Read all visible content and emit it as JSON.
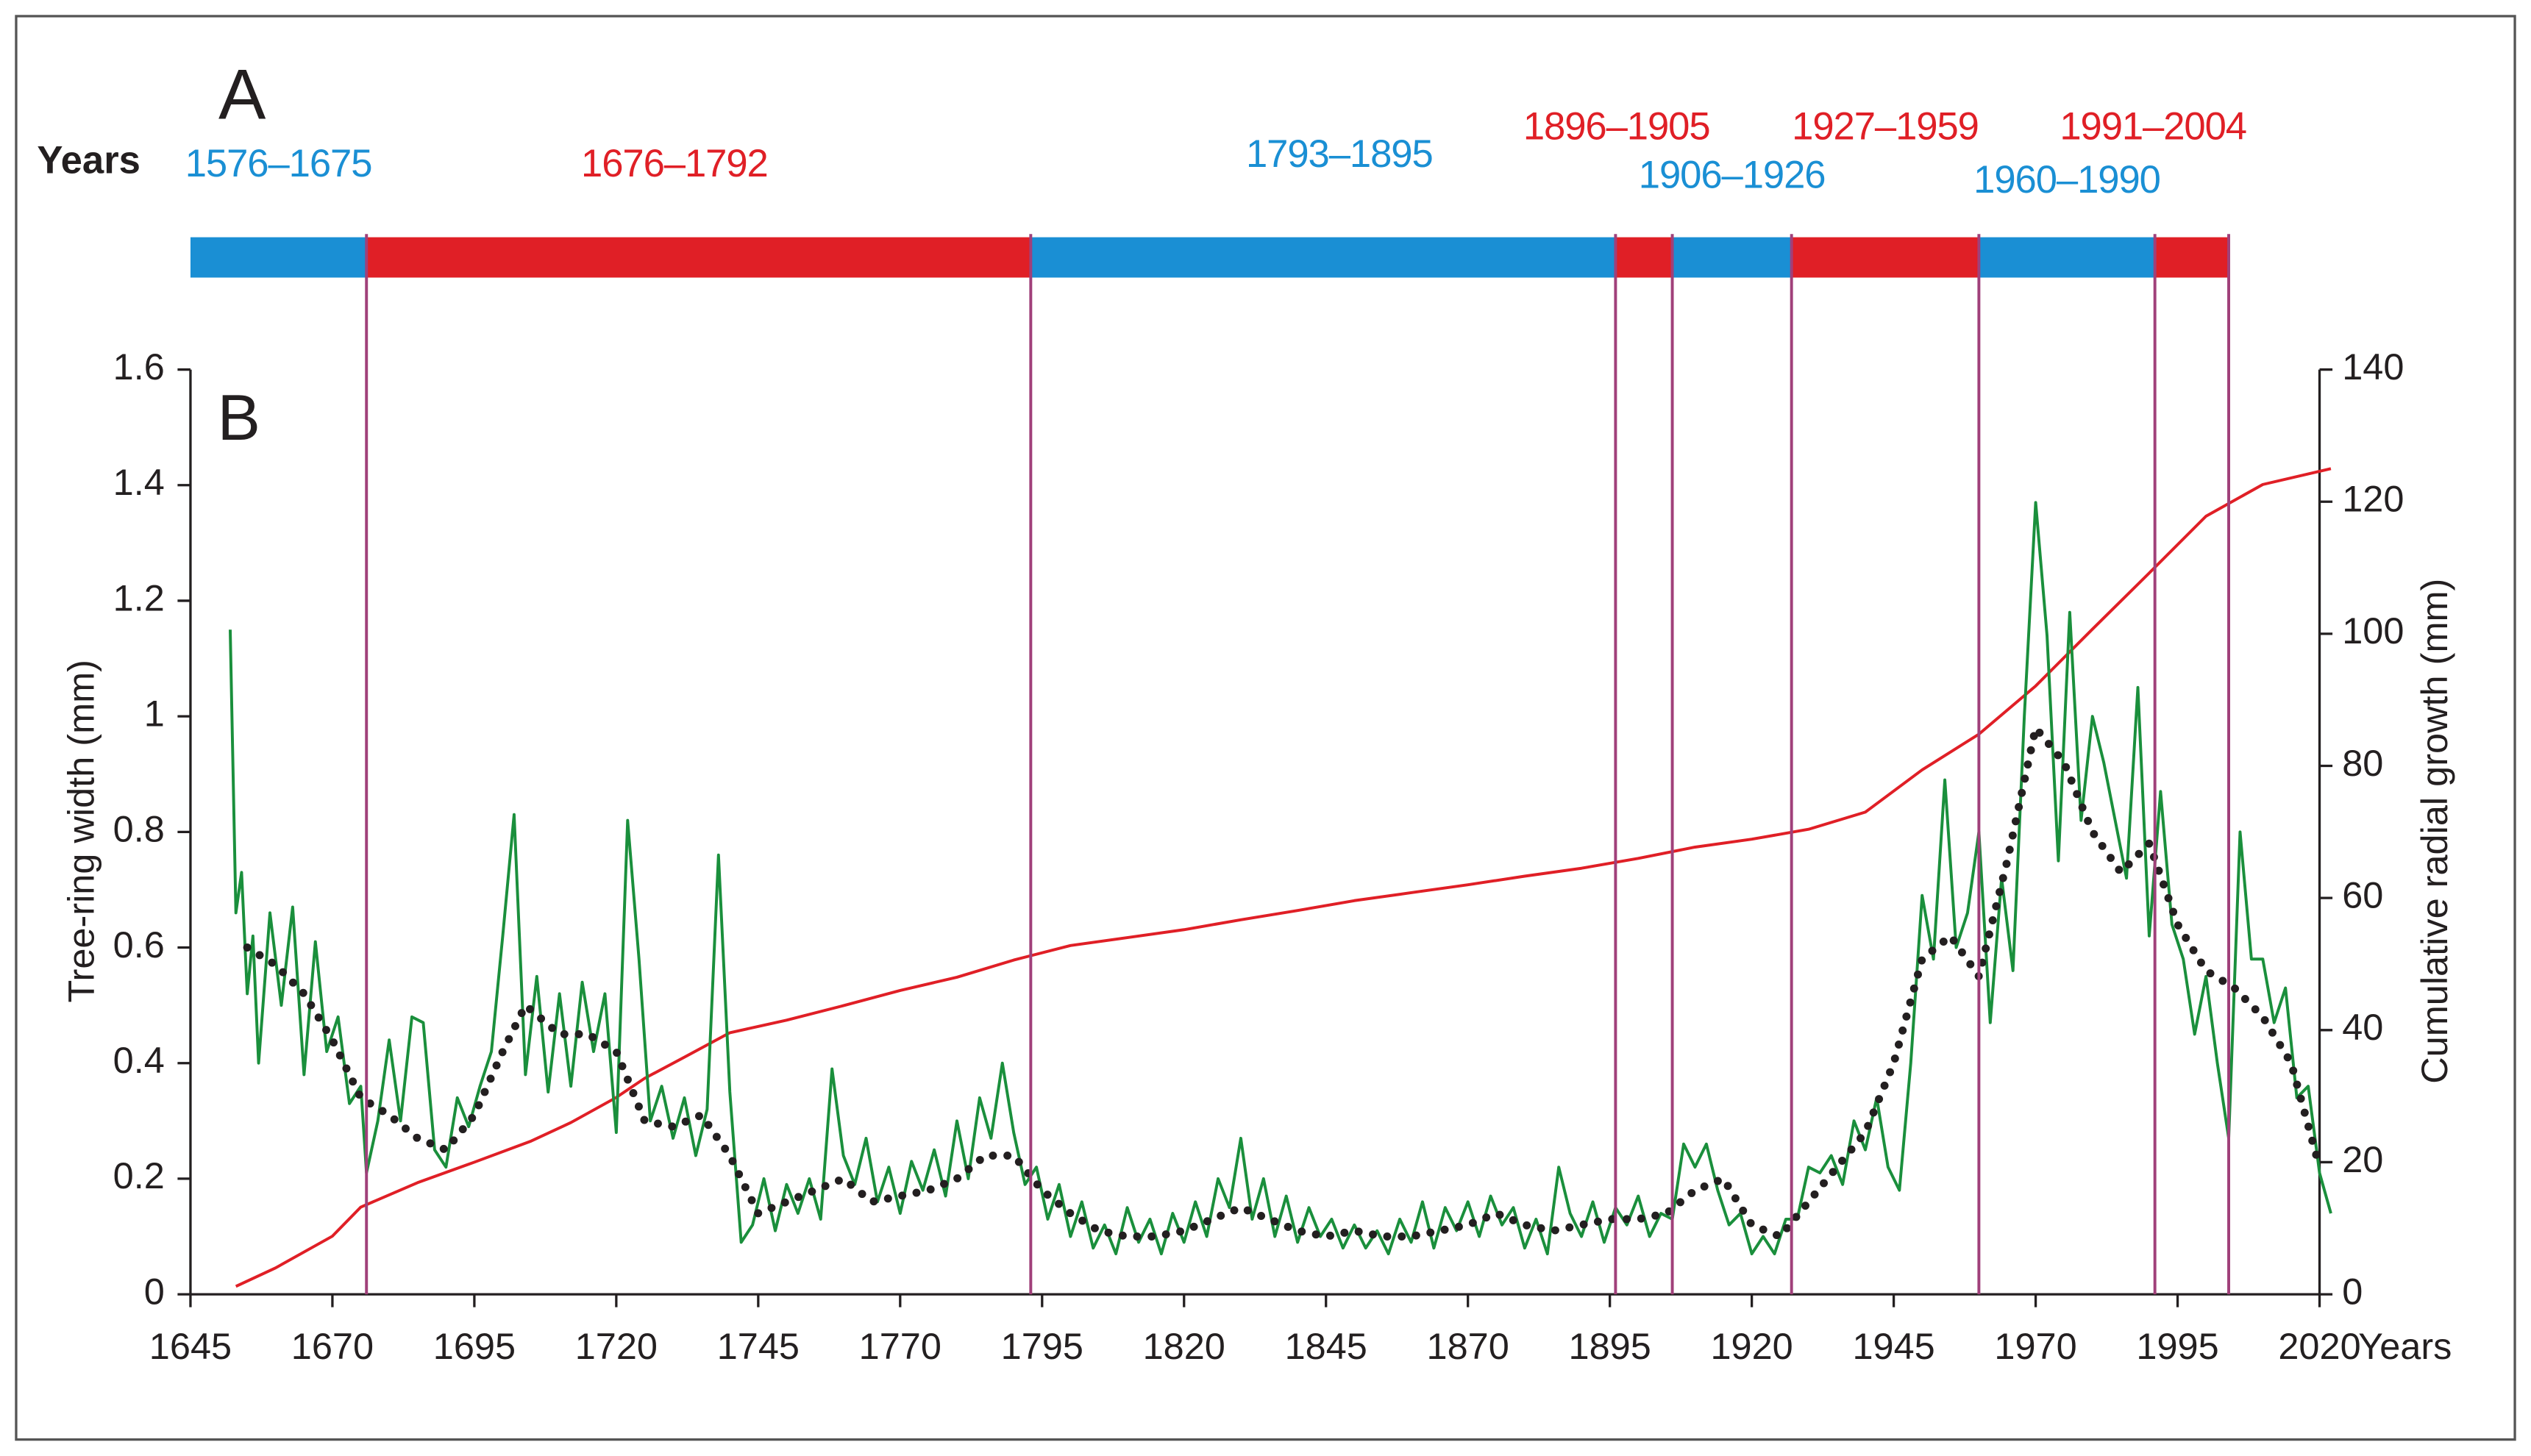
{
  "chart_data": {
    "type": "line",
    "panel_a": "A",
    "panel_b": "B",
    "period_axis_label": "Years",
    "periods": [
      {
        "label": "1576–1675",
        "color": "#1a8fd4"
      },
      {
        "label": "1676–1792",
        "color": "#e01f26"
      },
      {
        "label": "1793–1895",
        "color": "#1a8fd4"
      },
      {
        "label": "1896–1905",
        "color": "#e01f26"
      },
      {
        "label": "1906–1926",
        "color": "#1a8fd4"
      },
      {
        "label": "1927–1959",
        "color": "#e01f26"
      },
      {
        "label": "1960–1990",
        "color": "#1a8fd4"
      },
      {
        "label": "1991–2004",
        "color": "#e01f26"
      }
    ],
    "period_line_color": "#a0407a",
    "x_label": "Years",
    "y_label": "Tree-ring width (mm)",
    "y2_label": "Cumulative radial growth (mm)",
    "xlim": [
      1645,
      2020
    ],
    "xticks": [
      1645,
      1670,
      1695,
      1720,
      1745,
      1770,
      1795,
      1820,
      1845,
      1870,
      1895,
      1920,
      1945,
      1970,
      1995,
      2020
    ],
    "ylim": [
      0,
      1.6
    ],
    "yticks": [
      0,
      0.2,
      0.4,
      0.6,
      0.8,
      1,
      1.2,
      1.4,
      1.6
    ],
    "y2lim": [
      0,
      140
    ],
    "y2ticks": [
      0,
      20,
      40,
      60,
      80,
      100,
      120,
      140
    ],
    "series": [
      {
        "color": "#1a8f3c",
        "style": "solid",
        "x": [
          1652,
          1653,
          1654,
          1655,
          1656,
          1657,
          1659,
          1661,
          1663,
          1665,
          1667,
          1669,
          1671,
          1673,
          1675,
          1676,
          1678,
          1680,
          1682,
          1684,
          1686,
          1688,
          1690,
          1692,
          1694,
          1696,
          1698,
          1700,
          1702,
          1704,
          1706,
          1708,
          1710,
          1712,
          1714,
          1716,
          1718,
          1720,
          1722,
          1724,
          1726,
          1728,
          1730,
          1732,
          1734,
          1736,
          1738,
          1740,
          1742,
          1744,
          1746,
          1748,
          1750,
          1752,
          1754,
          1756,
          1758,
          1760,
          1762,
          1764,
          1766,
          1768,
          1770,
          1772,
          1774,
          1776,
          1778,
          1780,
          1782,
          1784,
          1786,
          1788,
          1790,
          1792,
          1794,
          1796,
          1798,
          1800,
          1802,
          1804,
          1806,
          1808,
          1810,
          1812,
          1814,
          1816,
          1818,
          1820,
          1822,
          1824,
          1826,
          1828,
          1830,
          1832,
          1834,
          1836,
          1838,
          1840,
          1842,
          1844,
          1846,
          1848,
          1850,
          1852,
          1854,
          1856,
          1858,
          1860,
          1862,
          1864,
          1866,
          1868,
          1870,
          1872,
          1874,
          1876,
          1878,
          1880,
          1882,
          1884,
          1886,
          1888,
          1890,
          1892,
          1894,
          1896,
          1898,
          1900,
          1902,
          1904,
          1906,
          1908,
          1910,
          1912,
          1914,
          1916,
          1918,
          1920,
          1922,
          1924,
          1926,
          1928,
          1930,
          1932,
          1934,
          1936,
          1938,
          1940,
          1942,
          1944,
          1946,
          1948,
          1950,
          1952,
          1954,
          1956,
          1958,
          1960,
          1962,
          1964,
          1966,
          1968,
          1970,
          1972,
          1974,
          1976,
          1978,
          1980,
          1982,
          1984,
          1986,
          1988,
          1990,
          1992,
          1994,
          1996,
          1998,
          2000,
          2002,
          2004,
          2006,
          2008,
          2010,
          2012,
          2014,
          2016,
          2018,
          2020,
          2022
        ],
        "values": [
          1.15,
          0.66,
          0.73,
          0.52,
          0.62,
          0.4,
          0.66,
          0.5,
          0.67,
          0.38,
          0.61,
          0.42,
          0.48,
          0.33,
          0.36,
          0.21,
          0.3,
          0.44,
          0.3,
          0.48,
          0.47,
          0.25,
          0.22,
          0.34,
          0.29,
          0.36,
          0.42,
          0.62,
          0.83,
          0.38,
          0.55,
          0.35,
          0.52,
          0.36,
          0.54,
          0.42,
          0.52,
          0.28,
          0.82,
          0.58,
          0.3,
          0.36,
          0.27,
          0.34,
          0.24,
          0.32,
          0.76,
          0.35,
          0.09,
          0.12,
          0.2,
          0.11,
          0.19,
          0.14,
          0.2,
          0.13,
          0.39,
          0.24,
          0.19,
          0.27,
          0.16,
          0.22,
          0.14,
          0.23,
          0.18,
          0.25,
          0.17,
          0.3,
          0.2,
          0.34,
          0.27,
          0.4,
          0.28,
          0.19,
          0.22,
          0.13,
          0.19,
          0.1,
          0.16,
          0.08,
          0.12,
          0.07,
          0.15,
          0.09,
          0.13,
          0.07,
          0.14,
          0.09,
          0.16,
          0.1,
          0.2,
          0.15,
          0.27,
          0.13,
          0.2,
          0.1,
          0.17,
          0.09,
          0.15,
          0.1,
          0.13,
          0.08,
          0.12,
          0.08,
          0.11,
          0.07,
          0.13,
          0.09,
          0.16,
          0.08,
          0.15,
          0.11,
          0.16,
          0.1,
          0.17,
          0.12,
          0.15,
          0.08,
          0.13,
          0.07,
          0.22,
          0.14,
          0.1,
          0.16,
          0.09,
          0.15,
          0.12,
          0.17,
          0.1,
          0.14,
          0.13,
          0.26,
          0.22,
          0.26,
          0.18,
          0.12,
          0.14,
          0.07,
          0.1,
          0.07,
          0.13,
          0.13,
          0.22,
          0.21,
          0.24,
          0.19,
          0.3,
          0.25,
          0.34,
          0.22,
          0.18,
          0.4,
          0.69,
          0.58,
          0.89,
          0.6,
          0.66,
          0.8,
          0.47,
          0.72,
          0.56,
          1.0,
          1.37,
          1.14,
          0.75,
          1.18,
          0.82,
          1.0,
          0.92,
          0.82,
          0.72,
          1.05,
          0.62,
          0.87,
          0.64,
          0.58,
          0.45,
          0.55,
          0.4,
          0.27,
          0.8,
          0.58,
          0.58,
          0.47,
          0.53,
          0.34,
          0.36,
          0.21,
          0.14
        ]
      },
      {
        "color": "#231f20",
        "style": "dotted",
        "x": [
          1655,
          1660,
          1665,
          1670,
          1675,
          1680,
          1685,
          1690,
          1695,
          1700,
          1704,
          1710,
          1715,
          1720,
          1725,
          1730,
          1735,
          1740,
          1745,
          1750,
          1755,
          1760,
          1765,
          1770,
          1775,
          1780,
          1785,
          1790,
          1795,
          1800,
          1805,
          1810,
          1815,
          1820,
          1825,
          1830,
          1835,
          1840,
          1845,
          1850,
          1855,
          1860,
          1865,
          1870,
          1875,
          1880,
          1885,
          1890,
          1895,
          1900,
          1905,
          1910,
          1915,
          1920,
          1925,
          1930,
          1935,
          1940,
          1945,
          1950,
          1955,
          1960,
          1965,
          1970,
          1975,
          1980,
          1985,
          1990,
          1995,
          2000,
          2005,
          2010,
          2015,
          2020
        ],
        "values": [
          0.6,
          0.57,
          0.52,
          0.44,
          0.34,
          0.31,
          0.27,
          0.25,
          0.31,
          0.42,
          0.5,
          0.45,
          0.45,
          0.42,
          0.3,
          0.29,
          0.31,
          0.24,
          0.14,
          0.16,
          0.18,
          0.2,
          0.16,
          0.17,
          0.18,
          0.2,
          0.24,
          0.24,
          0.18,
          0.14,
          0.11,
          0.1,
          0.1,
          0.11,
          0.13,
          0.15,
          0.13,
          0.11,
          0.1,
          0.11,
          0.1,
          0.1,
          0.11,
          0.12,
          0.14,
          0.12,
          0.11,
          0.12,
          0.13,
          0.13,
          0.14,
          0.18,
          0.2,
          0.12,
          0.1,
          0.16,
          0.22,
          0.28,
          0.4,
          0.58,
          0.62,
          0.55,
          0.75,
          0.98,
          0.92,
          0.8,
          0.73,
          0.78,
          0.64,
          0.56,
          0.53,
          0.48,
          0.4,
          0.22
        ]
      },
      {
        "color": "#e01f26",
        "style": "solid",
        "axis": "y2",
        "x": [
          1653,
          1660,
          1670,
          1675,
          1685,
          1695,
          1705,
          1712,
          1720,
          1725,
          1732,
          1740,
          1750,
          1760,
          1770,
          1780,
          1790,
          1800,
          1810,
          1820,
          1830,
          1840,
          1850,
          1860,
          1870,
          1880,
          1890,
          1900,
          1910,
          1920,
          1930,
          1940,
          1950,
          1960,
          1970,
          1980,
          1990,
          2000,
          2010,
          2022
        ],
        "values": [
          1.2,
          4,
          8.8,
          13.2,
          16.9,
          20,
          23.2,
          26,
          29.8,
          32.7,
          35.9,
          39.6,
          41.5,
          43.7,
          46,
          48,
          50.6,
          52.8,
          54,
          55.2,
          56.7,
          58.1,
          59.6,
          60.8,
          62,
          63.3,
          64.5,
          66,
          67.7,
          68.9,
          70.4,
          73,
          79.4,
          84.8,
          92.1,
          100.7,
          109.2,
          117.8,
          122.6,
          125
        ]
      }
    ]
  }
}
